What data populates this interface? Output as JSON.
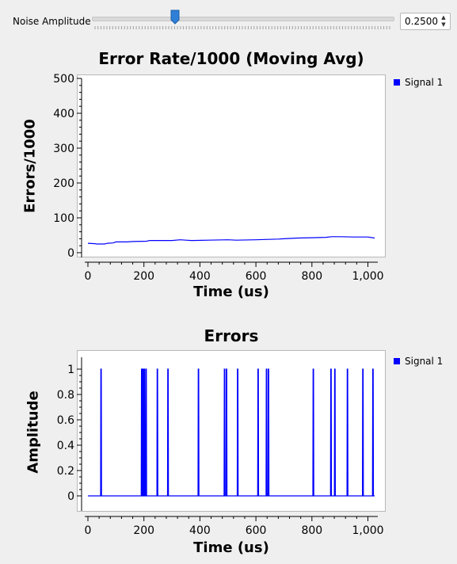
{
  "controls": {
    "noise_label": "Noise Amplitude",
    "noise_value_text": "0.2500",
    "noise_slider_fraction": 0.25
  },
  "chart_data": [
    {
      "type": "line",
      "title": "Error Rate/1000 (Moving Avg)",
      "xlabel": "Time (us)",
      "ylabel": "Errors/1000",
      "xlim": [
        0,
        1024
      ],
      "ylim": [
        0,
        500
      ],
      "x_ticks": [
        "0",
        "200",
        "400",
        "600",
        "800",
        "1,000"
      ],
      "y_ticks": [
        "0",
        "100",
        "200",
        "300",
        "400",
        "500"
      ],
      "legend": "top-right",
      "series": [
        {
          "name": "Signal 1",
          "color": "#0000ff",
          "x": [
            0,
            25,
            30,
            60,
            70,
            90,
            100,
            140,
            160,
            210,
            220,
            300,
            330,
            350,
            370,
            430,
            500,
            530,
            600,
            680,
            700,
            750,
            800,
            850,
            870,
            900,
            950,
            1000,
            1024
          ],
          "values": [
            27,
            26,
            25,
            25,
            27,
            28,
            31,
            31,
            32,
            33,
            35,
            35,
            37,
            36,
            35,
            36,
            37,
            36,
            37,
            39,
            40,
            42,
            43,
            44,
            46,
            46,
            45,
            45,
            42
          ]
        }
      ]
    },
    {
      "type": "line",
      "title": "Errors",
      "xlabel": "Time (us)",
      "ylabel": "Amplitude",
      "xlim": [
        0,
        1024
      ],
      "ylim": [
        -0.1,
        1.1
      ],
      "x_ticks": [
        "0",
        "200",
        "400",
        "600",
        "800",
        "1,000"
      ],
      "y_ticks": [
        "0",
        "0.2",
        "0.4",
        "0.6",
        "0.8",
        "1"
      ],
      "legend": "top-right",
      "series": [
        {
          "name": "Signal 1",
          "color": "#0000ff",
          "spikes_x": [
            47,
            192,
            197,
            202,
            208,
            248,
            286,
            395,
            488,
            495,
            535,
            608,
            638,
            645,
            805,
            868,
            882,
            927,
            982,
            1018
          ],
          "baseline": 0,
          "peak": 1
        }
      ]
    }
  ]
}
